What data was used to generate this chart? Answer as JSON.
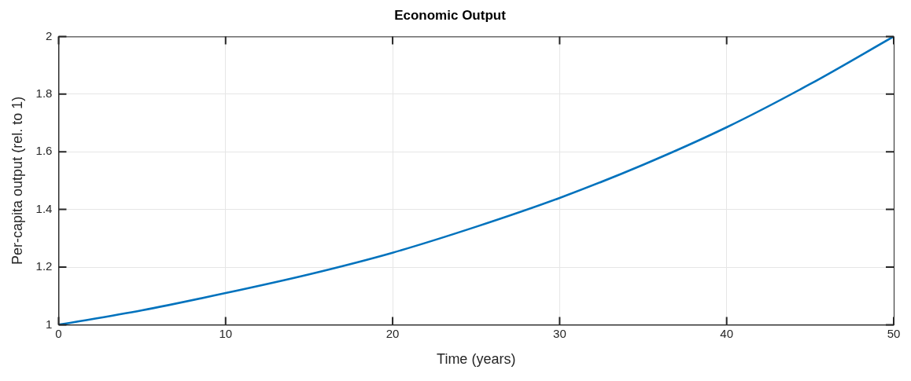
{
  "chart_data": {
    "type": "line",
    "title": "Economic Output",
    "xlabel": "Time (years)",
    "ylabel": "Per-capita output (rel. to 1)",
    "x": [
      0,
      5,
      10,
      15,
      20,
      25,
      30,
      35,
      40,
      45,
      50
    ],
    "series": [
      {
        "color": "#0072bd",
        "values": [
          1.0,
          1.05,
          1.11,
          1.175,
          1.25,
          1.34,
          1.44,
          1.555,
          1.685,
          1.835,
          2.0
        ]
      }
    ],
    "xlim": [
      0,
      50
    ],
    "xticks": [
      0,
      10,
      20,
      30,
      40,
      50
    ],
    "ylim": [
      1,
      2
    ],
    "yticks": [
      1,
      1.2,
      1.4,
      1.6,
      1.8,
      2
    ],
    "grid": true,
    "legend": false,
    "marker": "none",
    "line_style": "solid"
  }
}
